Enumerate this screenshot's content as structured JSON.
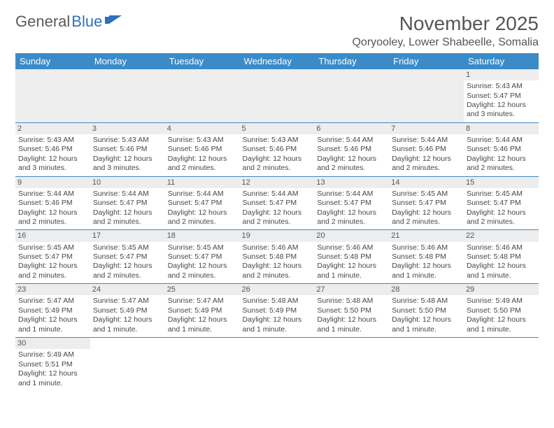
{
  "brand": {
    "part1": "General",
    "part2": "Blue"
  },
  "title": "November 2025",
  "location": "Qoryooley, Lower Shabeelle, Somalia",
  "colors": {
    "header_bg": "#3b8bc8",
    "header_text": "#ffffff",
    "daynum_bg": "#ededed",
    "border": "#3b8bc8",
    "text": "#474747",
    "brand_gray": "#5a5a5a",
    "brand_blue": "#2f71b8"
  },
  "day_headers": [
    "Sunday",
    "Monday",
    "Tuesday",
    "Wednesday",
    "Thursday",
    "Friday",
    "Saturday"
  ],
  "weeks": [
    [
      null,
      null,
      null,
      null,
      null,
      null,
      {
        "n": "1",
        "sr": "Sunrise: 5:43 AM",
        "ss": "Sunset: 5:47 PM",
        "dl": "Daylight: 12 hours and 3 minutes."
      }
    ],
    [
      {
        "n": "2",
        "sr": "Sunrise: 5:43 AM",
        "ss": "Sunset: 5:46 PM",
        "dl": "Daylight: 12 hours and 3 minutes."
      },
      {
        "n": "3",
        "sr": "Sunrise: 5:43 AM",
        "ss": "Sunset: 5:46 PM",
        "dl": "Daylight: 12 hours and 3 minutes."
      },
      {
        "n": "4",
        "sr": "Sunrise: 5:43 AM",
        "ss": "Sunset: 5:46 PM",
        "dl": "Daylight: 12 hours and 2 minutes."
      },
      {
        "n": "5",
        "sr": "Sunrise: 5:43 AM",
        "ss": "Sunset: 5:46 PM",
        "dl": "Daylight: 12 hours and 2 minutes."
      },
      {
        "n": "6",
        "sr": "Sunrise: 5:44 AM",
        "ss": "Sunset: 5:46 PM",
        "dl": "Daylight: 12 hours and 2 minutes."
      },
      {
        "n": "7",
        "sr": "Sunrise: 5:44 AM",
        "ss": "Sunset: 5:46 PM",
        "dl": "Daylight: 12 hours and 2 minutes."
      },
      {
        "n": "8",
        "sr": "Sunrise: 5:44 AM",
        "ss": "Sunset: 5:46 PM",
        "dl": "Daylight: 12 hours and 2 minutes."
      }
    ],
    [
      {
        "n": "9",
        "sr": "Sunrise: 5:44 AM",
        "ss": "Sunset: 5:46 PM",
        "dl": "Daylight: 12 hours and 2 minutes."
      },
      {
        "n": "10",
        "sr": "Sunrise: 5:44 AM",
        "ss": "Sunset: 5:47 PM",
        "dl": "Daylight: 12 hours and 2 minutes."
      },
      {
        "n": "11",
        "sr": "Sunrise: 5:44 AM",
        "ss": "Sunset: 5:47 PM",
        "dl": "Daylight: 12 hours and 2 minutes."
      },
      {
        "n": "12",
        "sr": "Sunrise: 5:44 AM",
        "ss": "Sunset: 5:47 PM",
        "dl": "Daylight: 12 hours and 2 minutes."
      },
      {
        "n": "13",
        "sr": "Sunrise: 5:44 AM",
        "ss": "Sunset: 5:47 PM",
        "dl": "Daylight: 12 hours and 2 minutes."
      },
      {
        "n": "14",
        "sr": "Sunrise: 5:45 AM",
        "ss": "Sunset: 5:47 PM",
        "dl": "Daylight: 12 hours and 2 minutes."
      },
      {
        "n": "15",
        "sr": "Sunrise: 5:45 AM",
        "ss": "Sunset: 5:47 PM",
        "dl": "Daylight: 12 hours and 2 minutes."
      }
    ],
    [
      {
        "n": "16",
        "sr": "Sunrise: 5:45 AM",
        "ss": "Sunset: 5:47 PM",
        "dl": "Daylight: 12 hours and 2 minutes."
      },
      {
        "n": "17",
        "sr": "Sunrise: 5:45 AM",
        "ss": "Sunset: 5:47 PM",
        "dl": "Daylight: 12 hours and 2 minutes."
      },
      {
        "n": "18",
        "sr": "Sunrise: 5:45 AM",
        "ss": "Sunset: 5:47 PM",
        "dl": "Daylight: 12 hours and 2 minutes."
      },
      {
        "n": "19",
        "sr": "Sunrise: 5:46 AM",
        "ss": "Sunset: 5:48 PM",
        "dl": "Daylight: 12 hours and 2 minutes."
      },
      {
        "n": "20",
        "sr": "Sunrise: 5:46 AM",
        "ss": "Sunset: 5:48 PM",
        "dl": "Daylight: 12 hours and 1 minute."
      },
      {
        "n": "21",
        "sr": "Sunrise: 5:46 AM",
        "ss": "Sunset: 5:48 PM",
        "dl": "Daylight: 12 hours and 1 minute."
      },
      {
        "n": "22",
        "sr": "Sunrise: 5:46 AM",
        "ss": "Sunset: 5:48 PM",
        "dl": "Daylight: 12 hours and 1 minute."
      }
    ],
    [
      {
        "n": "23",
        "sr": "Sunrise: 5:47 AM",
        "ss": "Sunset: 5:49 PM",
        "dl": "Daylight: 12 hours and 1 minute."
      },
      {
        "n": "24",
        "sr": "Sunrise: 5:47 AM",
        "ss": "Sunset: 5:49 PM",
        "dl": "Daylight: 12 hours and 1 minute."
      },
      {
        "n": "25",
        "sr": "Sunrise: 5:47 AM",
        "ss": "Sunset: 5:49 PM",
        "dl": "Daylight: 12 hours and 1 minute."
      },
      {
        "n": "26",
        "sr": "Sunrise: 5:48 AM",
        "ss": "Sunset: 5:49 PM",
        "dl": "Daylight: 12 hours and 1 minute."
      },
      {
        "n": "27",
        "sr": "Sunrise: 5:48 AM",
        "ss": "Sunset: 5:50 PM",
        "dl": "Daylight: 12 hours and 1 minute."
      },
      {
        "n": "28",
        "sr": "Sunrise: 5:48 AM",
        "ss": "Sunset: 5:50 PM",
        "dl": "Daylight: 12 hours and 1 minute."
      },
      {
        "n": "29",
        "sr": "Sunrise: 5:49 AM",
        "ss": "Sunset: 5:50 PM",
        "dl": "Daylight: 12 hours and 1 minute."
      }
    ],
    [
      {
        "n": "30",
        "sr": "Sunrise: 5:49 AM",
        "ss": "Sunset: 5:51 PM",
        "dl": "Daylight: 12 hours and 1 minute."
      },
      null,
      null,
      null,
      null,
      null,
      null
    ]
  ]
}
